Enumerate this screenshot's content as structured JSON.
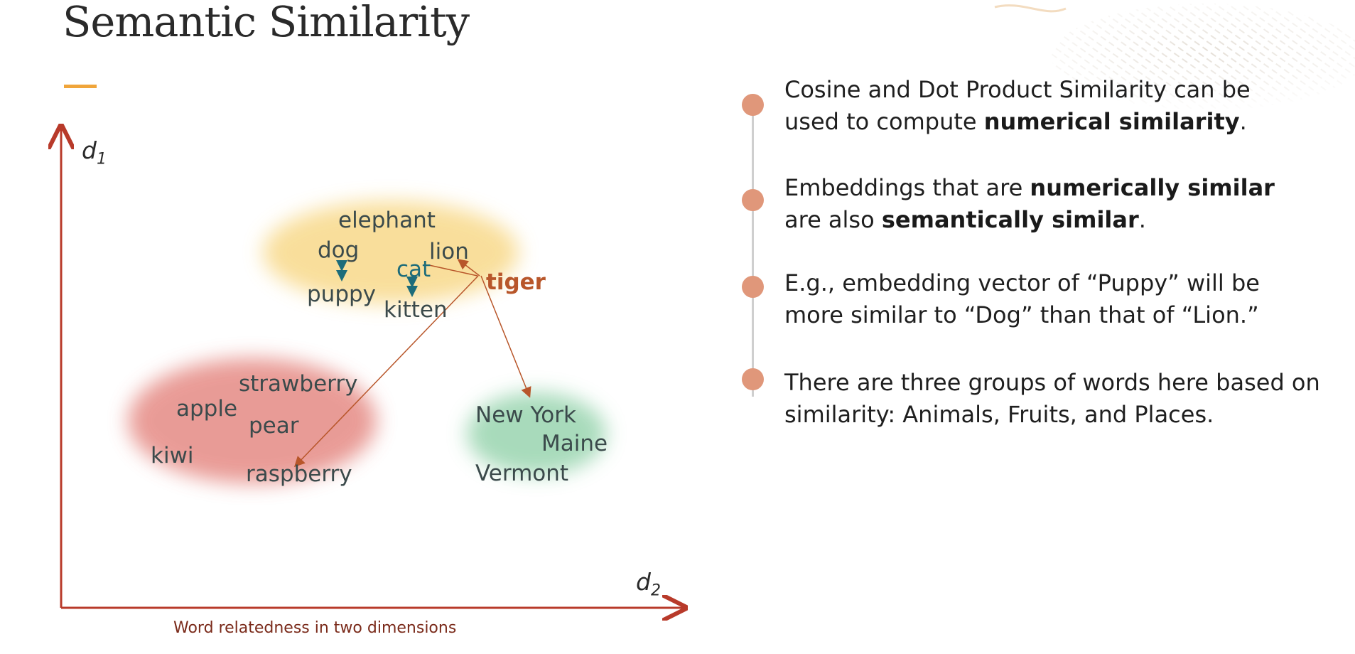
{
  "title": "Semantic Similarity",
  "diagram": {
    "axis_y_label": "d",
    "axis_y_sub": "1",
    "axis_x_label": "d",
    "axis_x_sub": "2",
    "caption": "Word relatedness in two dimensions",
    "clusters": {
      "animals": [
        "elephant",
        "dog",
        "lion",
        "cat",
        "tiger",
        "puppy",
        "kitten"
      ],
      "fruits": [
        "strawberry",
        "apple",
        "pear",
        "kiwi",
        "raspberry"
      ],
      "places": [
        "New York",
        "Maine",
        "Vermont"
      ]
    },
    "colors": {
      "animals": "#f8d98a",
      "fruits": "#e58a84",
      "places": "#9fd7b4",
      "axis": "#b83a2a",
      "highlight": "#b8562a",
      "pair": "#1d6c7a"
    }
  },
  "bullets": [
    {
      "parts": [
        {
          "t": "Cosine and Dot Product Similarity can be used to compute ",
          "b": false
        },
        {
          "t": "numerical similarity",
          "b": true
        },
        {
          "t": ".",
          "b": false
        }
      ]
    },
    {
      "parts": [
        {
          "t": "Embeddings that are ",
          "b": false
        },
        {
          "t": "numerically similar",
          "b": true
        },
        {
          "t": " are also ",
          "b": false
        },
        {
          "t": "semantically similar",
          "b": true
        },
        {
          "t": ".",
          "b": false
        }
      ]
    },
    {
      "parts": [
        {
          "t": "E.g., embedding vector of “Puppy” will be more similar to “Dog” than that of “Lion.”",
          "b": false
        }
      ]
    },
    {
      "parts": [
        {
          "t": "There are three groups of words here based on similarity: Animals, Fruits, and Places.",
          "b": false
        }
      ]
    }
  ],
  "accent_color": "#f0a53a",
  "bullet_color": "#e0977a"
}
